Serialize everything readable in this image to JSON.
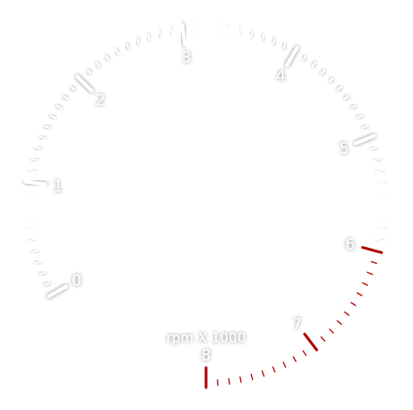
{
  "gauge": {
    "unit_label": "rpm X 1000",
    "min": 0,
    "max": 8,
    "labels": [
      "0",
      "1",
      "2",
      "3",
      "4",
      "5",
      "6",
      "7",
      "8"
    ],
    "redline_start": 6,
    "colors": {
      "normal_tick": "#ffffff",
      "tick_shadow": "#9a9a9a",
      "redline": "#b00000"
    }
  }
}
